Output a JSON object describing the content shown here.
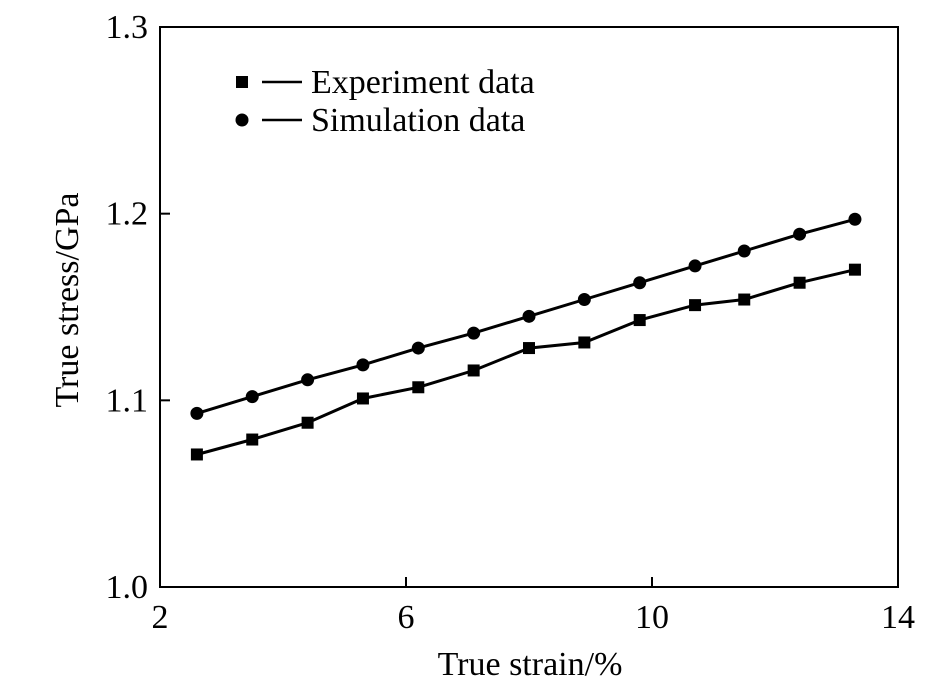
{
  "chart_data": {
    "type": "line",
    "xlabel": "True strain/%",
    "ylabel": "True stress/GPa",
    "xlim": [
      2,
      14
    ],
    "ylim": [
      1.0,
      1.3
    ],
    "xticks": [
      2,
      6,
      10,
      14
    ],
    "yticks": [
      1.0,
      1.1,
      1.2,
      1.3
    ],
    "xtick_labels": [
      "2",
      "6",
      "10",
      "14"
    ],
    "ytick_labels": [
      "1.0",
      "1.1",
      "1.2",
      "1.3"
    ],
    "grid": false,
    "legend_position": "top-left",
    "series": [
      {
        "name": "Experiment data",
        "marker": "square",
        "color": "#000000",
        "x": [
          2.6,
          3.5,
          4.4,
          5.3,
          6.2,
          7.1,
          8.0,
          8.9,
          9.8,
          10.7,
          11.5,
          12.4,
          13.3
        ],
        "y": [
          1.071,
          1.079,
          1.088,
          1.101,
          1.107,
          1.116,
          1.128,
          1.131,
          1.143,
          1.151,
          1.154,
          1.163,
          1.17
        ]
      },
      {
        "name": "Simulation data",
        "marker": "circle",
        "color": "#000000",
        "x": [
          2.6,
          3.5,
          4.4,
          5.3,
          6.2,
          7.1,
          8.0,
          8.9,
          9.8,
          10.7,
          11.5,
          12.4,
          13.3
        ],
        "y": [
          1.093,
          1.102,
          1.111,
          1.119,
          1.128,
          1.136,
          1.145,
          1.154,
          1.163,
          1.172,
          1.18,
          1.189,
          1.197
        ]
      }
    ]
  }
}
